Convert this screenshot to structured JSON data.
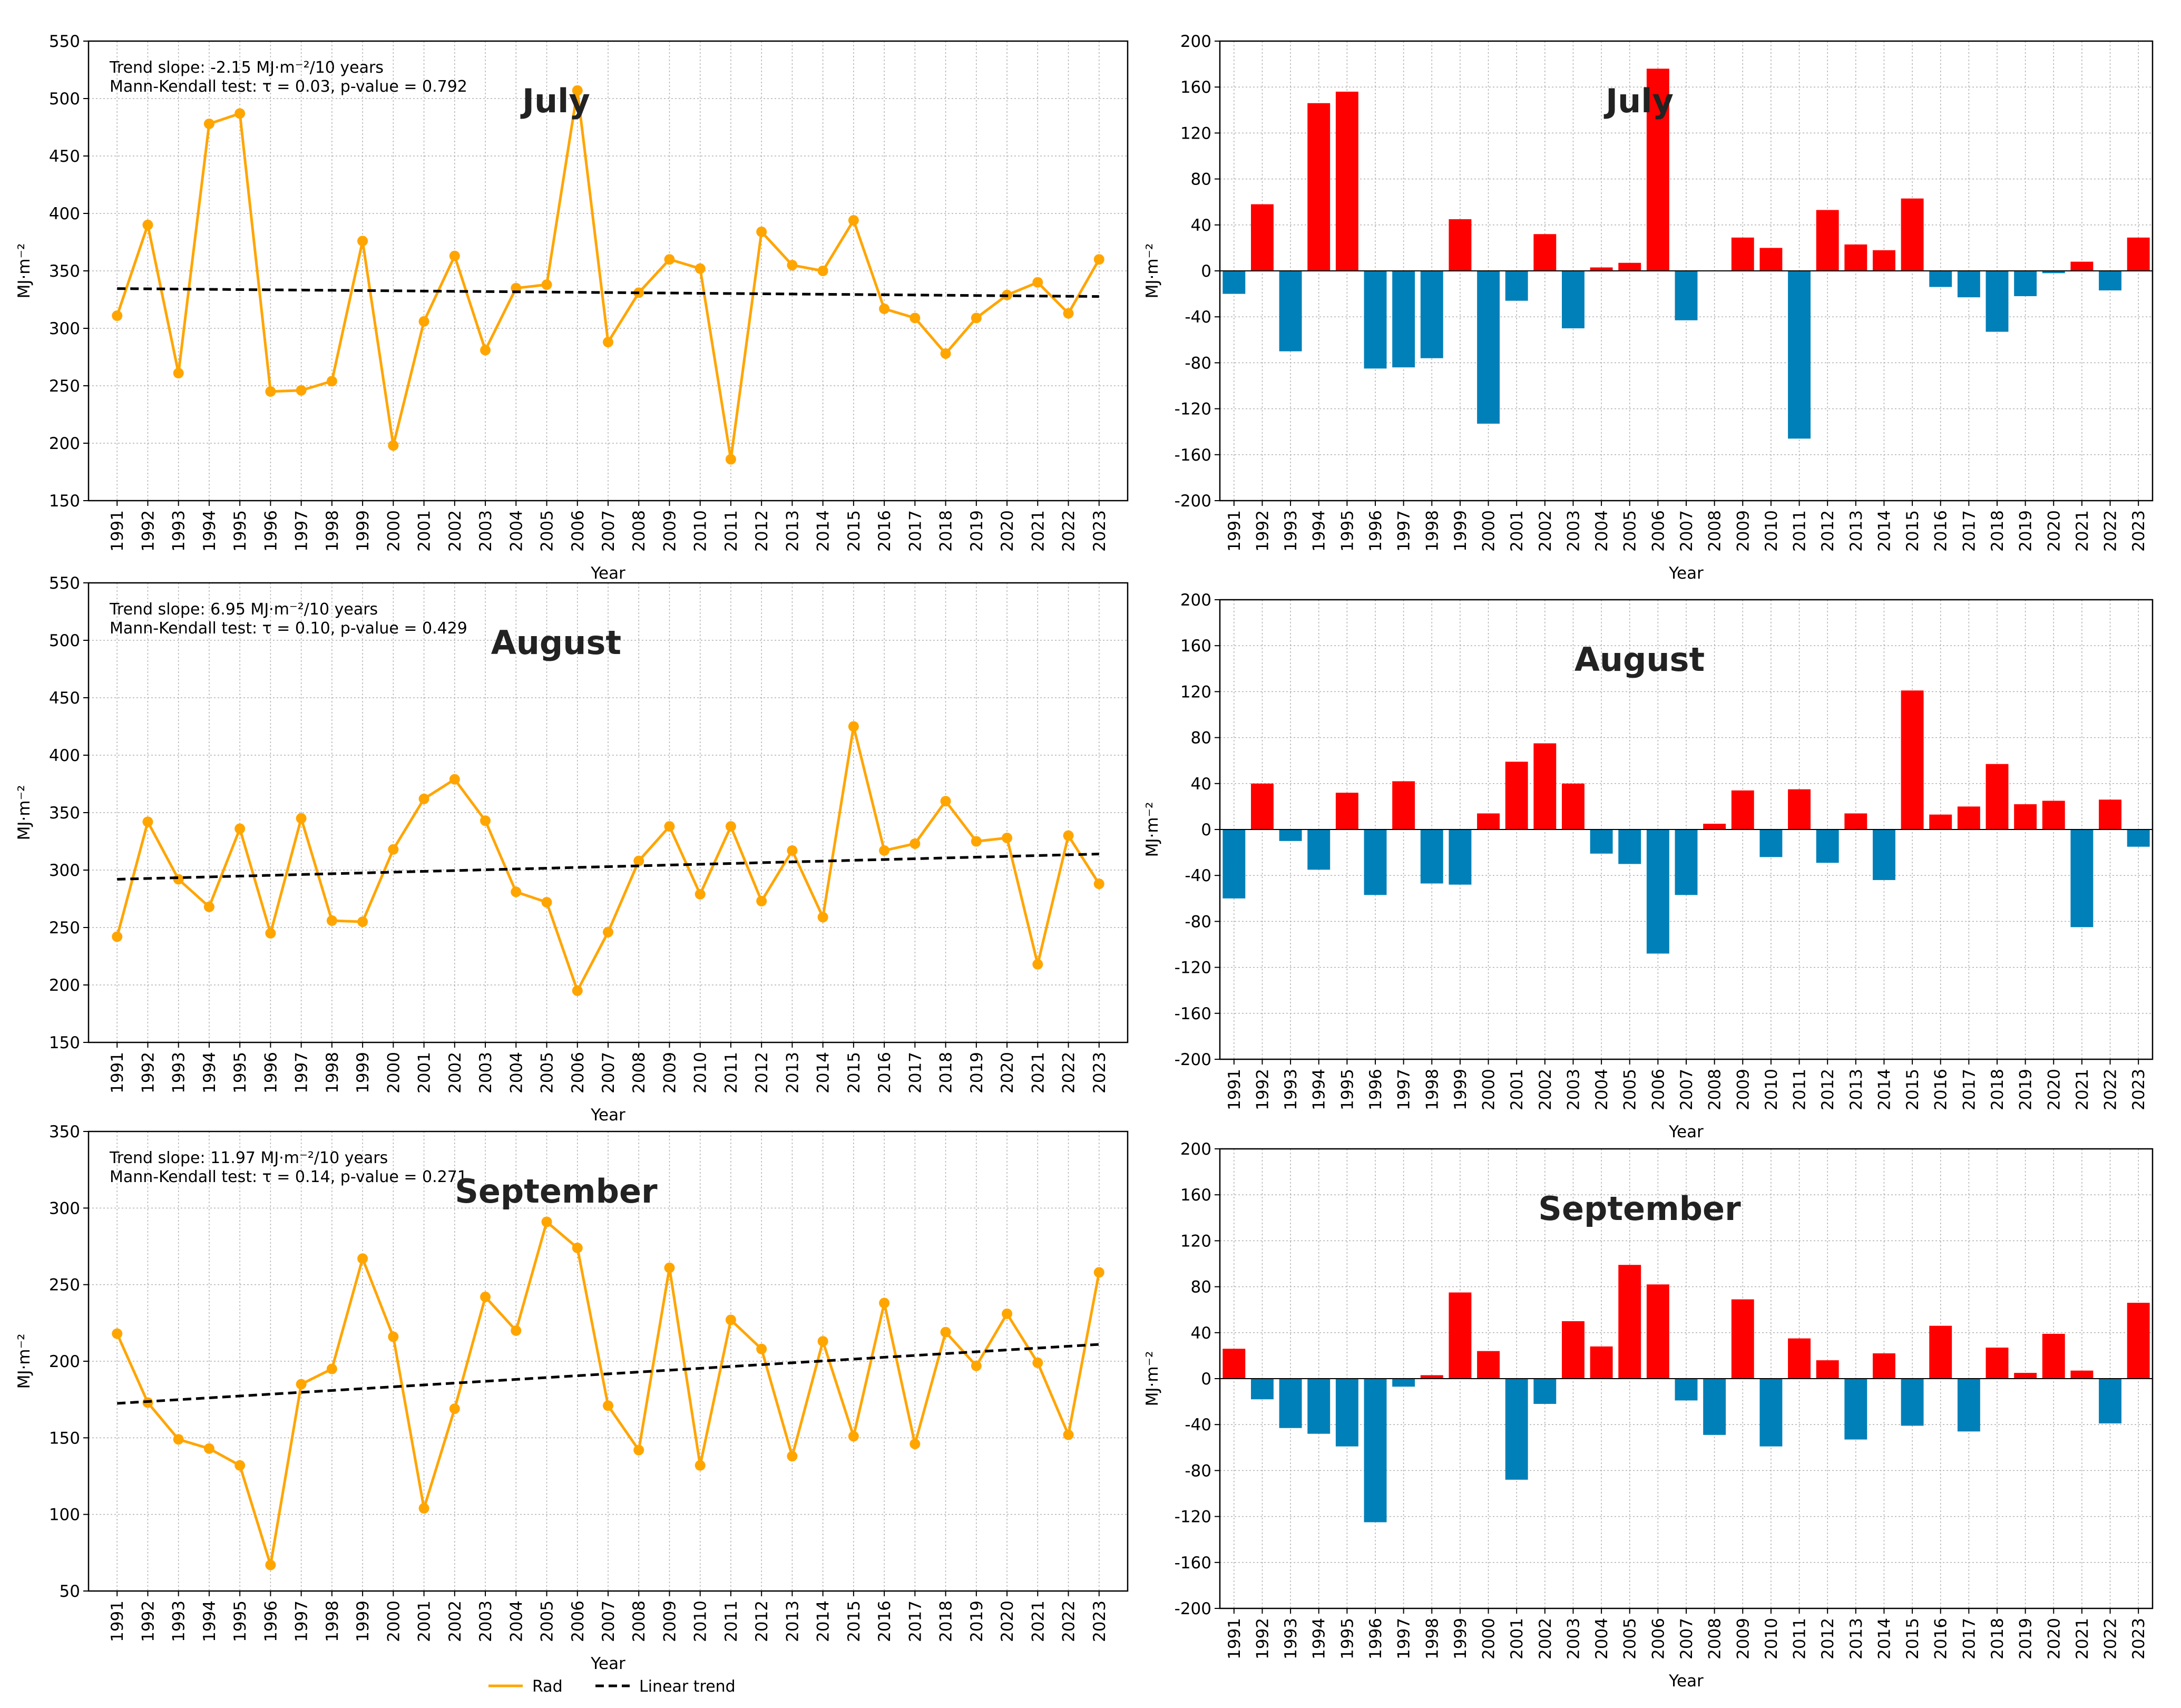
{
  "years": [
    "1991",
    "1992",
    "1993",
    "1994",
    "1995",
    "1996",
    "1997",
    "1998",
    "1999",
    "2000",
    "2001",
    "2002",
    "2003",
    "2004",
    "2005",
    "2006",
    "2007",
    "2008",
    "2009",
    "2010",
    "2011",
    "2012",
    "2013",
    "2014",
    "2015",
    "2016",
    "2017",
    "2018",
    "2019",
    "2020",
    "2021",
    "2022",
    "2023"
  ],
  "colors": {
    "line": "#FFA500",
    "trend": "#000000",
    "positive": "#FF0000",
    "negative": "#0080B8",
    "grid": "#B0B0B0"
  },
  "legend": {
    "rad": "Rad",
    "trend": "Linear trend"
  },
  "chart_data": [
    {
      "type": "line",
      "month": "July",
      "xlabel": "Year",
      "ylabel": "MJ·m⁻²",
      "ylim": [
        150,
        550
      ],
      "yticks": [
        150,
        200,
        250,
        300,
        350,
        400,
        450,
        500,
        550
      ],
      "annot1": "Trend slope: -2.15 MJ·m⁻²/10 years",
      "annot2": "Mann-Kendall test: τ = 0.03, p-value = 0.792",
      "values": [
        311,
        390,
        261,
        478,
        487,
        245,
        246,
        254,
        376,
        198,
        306,
        363,
        281,
        335,
        338,
        507,
        288,
        331,
        360,
        352,
        186,
        384,
        355,
        350,
        394,
        317,
        309,
        278,
        309,
        329,
        340,
        313,
        360
      ],
      "trend": [
        334.6,
        327.7
      ]
    },
    {
      "type": "bar",
      "month": "July",
      "xlabel": "Year",
      "ylabel": "MJ·m⁻²",
      "ylim": [
        -200,
        200
      ],
      "yticks": [
        -200,
        -160,
        -120,
        -80,
        -40,
        0,
        40,
        80,
        120,
        160,
        200
      ],
      "values": [
        -20,
        58,
        -70,
        146,
        156,
        -85,
        -84,
        -76,
        45,
        -133,
        -26,
        32,
        -50,
        3,
        7,
        176,
        -43,
        0,
        29,
        20,
        -146,
        53,
        23,
        18,
        63,
        -14,
        -23,
        -53,
        -22,
        -2,
        8,
        -17,
        29
      ]
    },
    {
      "type": "line",
      "month": "August",
      "xlabel": "Year",
      "ylabel": "MJ·m⁻²",
      "ylim": [
        150,
        550
      ],
      "yticks": [
        150,
        200,
        250,
        300,
        350,
        400,
        450,
        500,
        550
      ],
      "annot1": "Trend slope: 6.95 MJ·m⁻²/10 years",
      "annot2": "Mann-Kendall test: τ = 0.10, p-value = 0.429",
      "values": [
        242,
        342,
        292,
        268,
        336,
        245,
        345,
        256,
        255,
        318,
        362,
        379,
        343,
        281,
        272,
        195,
        246,
        308,
        338,
        279,
        338,
        273,
        317,
        259,
        425,
        317,
        323,
        360,
        325,
        328,
        218,
        330,
        288
      ],
      "trend": [
        292,
        314
      ]
    },
    {
      "type": "bar",
      "month": "August",
      "xlabel": "Year",
      "ylabel": "MJ·m⁻²",
      "ylim": [
        -200,
        200
      ],
      "yticks": [
        -200,
        -160,
        -120,
        -80,
        -40,
        0,
        40,
        80,
        120,
        160,
        200
      ],
      "values": [
        -60,
        40,
        -10,
        -35,
        32,
        -57,
        42,
        -47,
        -48,
        14,
        59,
        75,
        40,
        -21,
        -30,
        -108,
        -57,
        5,
        34,
        -24,
        35,
        -29,
        14,
        -44,
        121,
        13,
        20,
        57,
        22,
        25,
        -85,
        26,
        -15
      ]
    },
    {
      "type": "line",
      "month": "September",
      "xlabel": "Year",
      "ylabel": "MJ·m⁻²",
      "ylim": [
        50,
        350
      ],
      "yticks": [
        50,
        100,
        150,
        200,
        250,
        300,
        350
      ],
      "annot1": "Trend slope: 11.97 MJ·m⁻²/10 years",
      "annot2": "Mann-Kendall test: τ = 0.14, p-value = 0.271",
      "values": [
        218,
        173,
        149,
        143,
        132,
        67,
        185,
        195,
        267,
        216,
        104,
        169,
        242,
        220,
        291,
        274,
        171,
        142,
        261,
        132,
        227,
        208,
        138,
        213,
        151,
        238,
        146,
        219,
        197,
        231,
        199,
        152,
        258
      ],
      "trend": [
        172.5,
        211
      ]
    },
    {
      "type": "bar",
      "month": "September",
      "xlabel": "Year",
      "ylabel": "MJ·m⁻²",
      "ylim": [
        -200,
        200
      ],
      "yticks": [
        -200,
        -160,
        -120,
        -80,
        -40,
        0,
        40,
        80,
        120,
        160,
        200
      ],
      "values": [
        26,
        -18,
        -43,
        -48,
        -59,
        -125,
        -7,
        3,
        75,
        24,
        -88,
        -22,
        50,
        28,
        99,
        82,
        -19,
        -49,
        69,
        -59,
        35,
        16,
        -53,
        22,
        -41,
        46,
        -46,
        27,
        5,
        39,
        7,
        -39,
        66
      ]
    }
  ]
}
